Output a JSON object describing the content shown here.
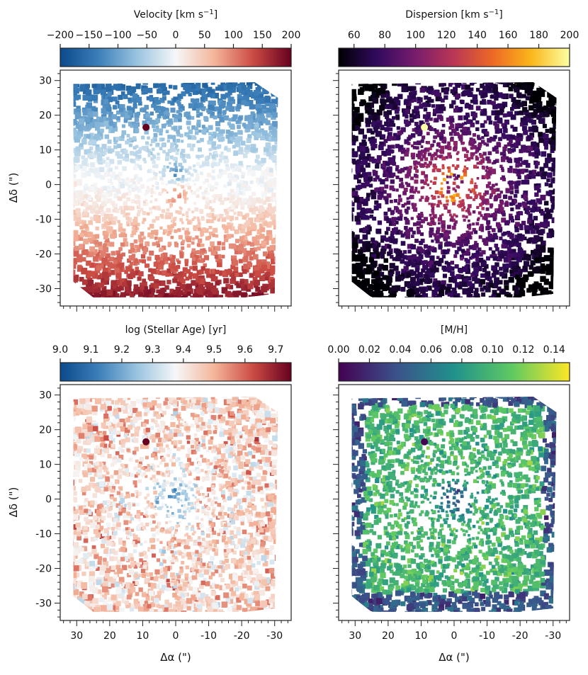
{
  "chart_data": [
    {
      "type": "heatmap",
      "panel": "top-left",
      "quantity": "stellar velocity",
      "colorbar": {
        "title": "Velocity [km s",
        "title_sup": "−1",
        "title_end": "]",
        "ticks": [
          "−200",
          "−150",
          "−100",
          "−50",
          "0",
          "50",
          "100",
          "150",
          "200"
        ],
        "range": [
          -200,
          200
        ],
        "colormap": "RdBu_r",
        "stops": [
          "#0b4a8b",
          "#3c7fb9",
          "#9ac4e0",
          "#f6f7f8",
          "#f4b59b",
          "#cc4c44",
          "#67001f"
        ]
      },
      "ylabel": "Δδ (\")",
      "xlabel": "",
      "yticks": [
        "30",
        "20",
        "10",
        "0",
        "-10",
        "-20",
        "-30"
      ],
      "xticks": [],
      "xlim": [
        35,
        -35
      ],
      "ylim": [
        -35,
        33
      ]
    },
    {
      "type": "heatmap",
      "panel": "top-right",
      "quantity": "velocity dispersion",
      "colorbar": {
        "title": "Dispersion [km s",
        "title_sup": "−1",
        "title_end": "]",
        "ticks": [
          "60",
          "80",
          "100",
          "120",
          "140",
          "160",
          "180",
          "200"
        ],
        "range": [
          50,
          200
        ],
        "colormap": "inferno",
        "stops": [
          "#000004",
          "#320a5e",
          "#781c6d",
          "#bb3754",
          "#ed6925",
          "#fbb61a",
          "#fcffa4"
        ]
      },
      "ylabel": "",
      "xlabel": "",
      "yticks": [],
      "xticks": [],
      "xlim": [
        35,
        -35
      ],
      "ylim": [
        -35,
        33
      ]
    },
    {
      "type": "heatmap",
      "panel": "bottom-left",
      "quantity": "log stellar age",
      "colorbar": {
        "title": "log (Stellar Age) [yr]",
        "title_sup": "",
        "title_end": "",
        "ticks": [
          "9.0",
          "9.1",
          "9.2",
          "9.3",
          "9.4",
          "9.5",
          "9.6",
          "9.7"
        ],
        "range": [
          9.0,
          9.75
        ],
        "colormap": "RdBu_r",
        "stops": [
          "#0b4a8b",
          "#3c7fb9",
          "#9ac4e0",
          "#f6f7f8",
          "#f4b59b",
          "#cc4c44",
          "#67001f"
        ]
      },
      "ylabel": "Δδ (\")",
      "xlabel": "Δα (\")",
      "yticks": [
        "30",
        "20",
        "10",
        "0",
        "-10",
        "-20",
        "-30"
      ],
      "xticks": [
        "30",
        "20",
        "10",
        "0",
        "-10",
        "-20",
        "-30"
      ],
      "xlim": [
        35,
        -35
      ],
      "ylim": [
        -35,
        33
      ]
    },
    {
      "type": "heatmap",
      "panel": "bottom-right",
      "quantity": "metallicity",
      "colorbar": {
        "title": "[M/H]",
        "title_sup": "",
        "title_end": "",
        "ticks": [
          "0.00",
          "0.02",
          "0.04",
          "0.06",
          "0.08",
          "0.10",
          "0.12",
          "0.14"
        ],
        "range": [
          0.0,
          0.15
        ],
        "colormap": "viridis",
        "stops": [
          "#440154",
          "#3b528b",
          "#21918c",
          "#5ec962",
          "#fde725"
        ]
      },
      "ylabel": "",
      "xlabel": "Δα (\")",
      "yticks": [],
      "xticks": [
        "30",
        "20",
        "10",
        "0",
        "-10",
        "-20",
        "-30"
      ],
      "xlim": [
        35,
        -35
      ],
      "ylim": [
        -35,
        33
      ]
    }
  ]
}
